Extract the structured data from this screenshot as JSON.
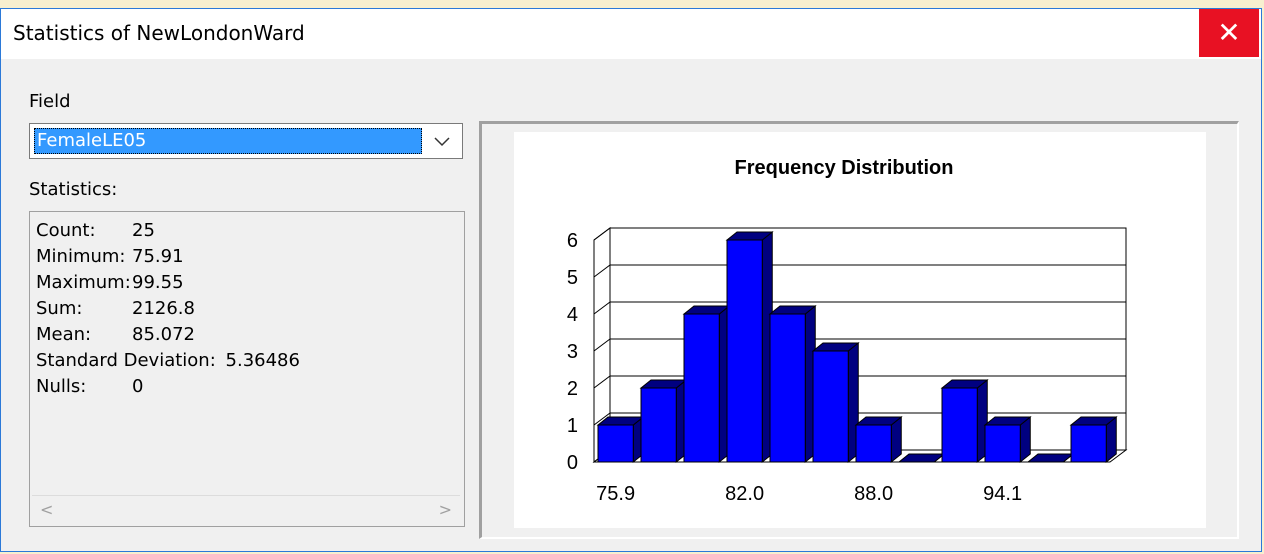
{
  "window": {
    "title": "Statistics of NewLondonWard",
    "close_label": "✕"
  },
  "field": {
    "label": "Field",
    "selected": "FemaleLE05"
  },
  "statistics": {
    "label": "Statistics:",
    "rows": [
      {
        "name": "Count:",
        "value": "25"
      },
      {
        "name": "Minimum:",
        "value": "75.91"
      },
      {
        "name": "Maximum:",
        "value": "99.55"
      },
      {
        "name": "Sum:",
        "value": "2126.8"
      },
      {
        "name": "Mean:",
        "value": "85.072"
      },
      {
        "name": "Standard Deviation:",
        "value": "5.36486"
      },
      {
        "name": "Nulls:",
        "value": "0"
      }
    ]
  },
  "chart_data": {
    "type": "bar",
    "title": "Frequency Distribution",
    "values": [
      1,
      2,
      4,
      6,
      4,
      3,
      1,
      0,
      2,
      1,
      0,
      1
    ],
    "x_tick_labels": [
      "75.9",
      "82.0",
      "88.0",
      "94.1"
    ],
    "y_ticks": [
      "0",
      "1",
      "2",
      "3",
      "4",
      "5",
      "6"
    ],
    "ylim": [
      0,
      6
    ],
    "bar_color": "#0000ff",
    "bar_side_color": "#000080",
    "grid": true,
    "style": "3d"
  }
}
